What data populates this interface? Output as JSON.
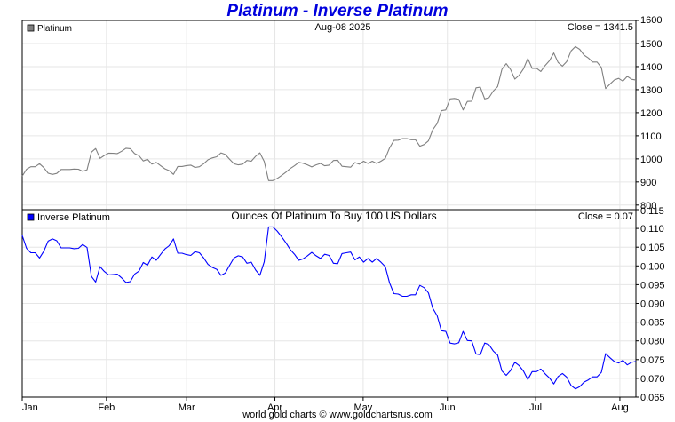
{
  "chart_data": [
    {
      "type": "line",
      "title": "Platinum - Inverse Platinum",
      "panel": "top",
      "series_name": "Platinum",
      "center_label": "Aug-08  2025",
      "close_label": "Close = 1341.5",
      "line_color": "#808080",
      "ylim": [
        780,
        1600
      ],
      "yticks": [
        800,
        900,
        1000,
        1100,
        1200,
        1300,
        1400,
        1500,
        1600
      ],
      "ytick_labels": [
        "800",
        "900",
        "1000",
        "1100",
        "1200",
        "1300",
        "1400",
        "1500",
        "1600"
      ],
      "x_range": [
        0,
        153
      ],
      "xticks": [
        0,
        21,
        41,
        63,
        85,
        106,
        128,
        149
      ],
      "xtick_labels": [
        "Jan",
        "Feb",
        "Mar",
        "Apr",
        "May",
        "Jun",
        "Jul",
        "Aug"
      ],
      "values": [
        925,
        955,
        966,
        966,
        979,
        962,
        938,
        933,
        937,
        954,
        954,
        954,
        956,
        955,
        946,
        953,
        1029,
        1045,
        1002,
        1015,
        1025,
        1024,
        1023,
        1033,
        1046,
        1044,
        1023,
        1014,
        991,
        998,
        977,
        985,
        971,
        957,
        949,
        933,
        967,
        967,
        971,
        973,
        963,
        966,
        979,
        996,
        1004,
        1009,
        1026,
        1019,
        998,
        979,
        974,
        977,
        993,
        990,
        1011,
        1026,
        989,
        906,
        906,
        915,
        928,
        942,
        958,
        970,
        985,
        981,
        974,
        965,
        974,
        980,
        970,
        973,
        993,
        994,
        968,
        966,
        964,
        984,
        977,
        990,
        980,
        990,
        980,
        990,
        1002,
        1047,
        1080,
        1081,
        1088,
        1088,
        1083,
        1083,
        1055,
        1062,
        1078,
        1127,
        1153,
        1209,
        1212,
        1260,
        1262,
        1258,
        1212,
        1249,
        1250,
        1308,
        1311,
        1260,
        1265,
        1294,
        1313,
        1388,
        1413,
        1387,
        1346,
        1363,
        1391,
        1435,
        1392,
        1393,
        1379,
        1405,
        1426,
        1459,
        1418,
        1402,
        1422,
        1468,
        1487,
        1475,
        1450,
        1437,
        1420,
        1420,
        1396,
        1305,
        1324,
        1342,
        1349,
        1337,
        1358,
        1345,
        1341.5
      ]
    },
    {
      "type": "line",
      "panel": "bottom",
      "series_name": "Inverse Platinum",
      "center_label": "Ounces Of Platinum To Buy 100 US Dollars",
      "close_label": "Close = 0.07",
      "line_color": "#0000ff",
      "ylim": [
        0.065,
        0.115
      ],
      "yticks": [
        0.065,
        0.07,
        0.075,
        0.08,
        0.085,
        0.09,
        0.095,
        0.1,
        0.105,
        0.11,
        0.115
      ],
      "ytick_labels": [
        "0.065",
        "0.070",
        "0.075",
        "0.080",
        "0.085",
        "0.090",
        "0.095",
        "0.100",
        "0.105",
        "0.110",
        "0.115"
      ],
      "x_range": [
        0,
        153
      ],
      "xticks": [
        0,
        21,
        41,
        63,
        85,
        106,
        128,
        149
      ],
      "xtick_labels": [
        "Jan",
        "Feb",
        "Mar",
        "Apr",
        "May",
        "Jun",
        "Jul",
        "Aug"
      ],
      "values": [
        0.1081,
        0.1047,
        0.1035,
        0.1035,
        0.1021,
        0.1039,
        0.1066,
        0.1072,
        0.1067,
        0.1048,
        0.1048,
        0.1048,
        0.1046,
        0.1047,
        0.1057,
        0.1049,
        0.0972,
        0.0957,
        0.0998,
        0.0985,
        0.0976,
        0.0977,
        0.0978,
        0.0968,
        0.0956,
        0.0958,
        0.0978,
        0.0986,
        0.1009,
        0.1002,
        0.1024,
        0.1015,
        0.103,
        0.1045,
        0.1054,
        0.1072,
        0.1034,
        0.1034,
        0.103,
        0.1028,
        0.1038,
        0.1035,
        0.1021,
        0.1004,
        0.0996,
        0.0991,
        0.0975,
        0.0981,
        0.1002,
        0.1021,
        0.1027,
        0.1024,
        0.1007,
        0.101,
        0.0989,
        0.0975,
        0.1011,
        0.1104,
        0.1104,
        0.1093,
        0.1078,
        0.1062,
        0.1044,
        0.1031,
        0.1015,
        0.1019,
        0.1027,
        0.1036,
        0.1027,
        0.102,
        0.1031,
        0.1028,
        0.1007,
        0.1006,
        0.1033,
        0.1035,
        0.1037,
        0.1016,
        0.1024,
        0.101,
        0.102,
        0.101,
        0.102,
        0.101,
        0.0998,
        0.0955,
        0.0926,
        0.0925,
        0.0919,
        0.0919,
        0.0923,
        0.0923,
        0.0948,
        0.0942,
        0.0928,
        0.0887,
        0.0867,
        0.0827,
        0.0825,
        0.0794,
        0.0792,
        0.0795,
        0.0825,
        0.0801,
        0.08,
        0.0765,
        0.0763,
        0.0794,
        0.079,
        0.0773,
        0.0762,
        0.072,
        0.0708,
        0.0721,
        0.0743,
        0.0734,
        0.0719,
        0.0697,
        0.0718,
        0.0718,
        0.0725,
        0.0712,
        0.0701,
        0.0685,
        0.0705,
        0.0713,
        0.0703,
        0.0681,
        0.0672,
        0.0678,
        0.069,
        0.0696,
        0.0704,
        0.0704,
        0.0716,
        0.0766,
        0.0755,
        0.0745,
        0.0741,
        0.0748,
        0.0736,
        0.0743,
        0.0745
      ]
    }
  ],
  "footer": {
    "credit": "world gold charts © www.goldchartsrus.com"
  }
}
